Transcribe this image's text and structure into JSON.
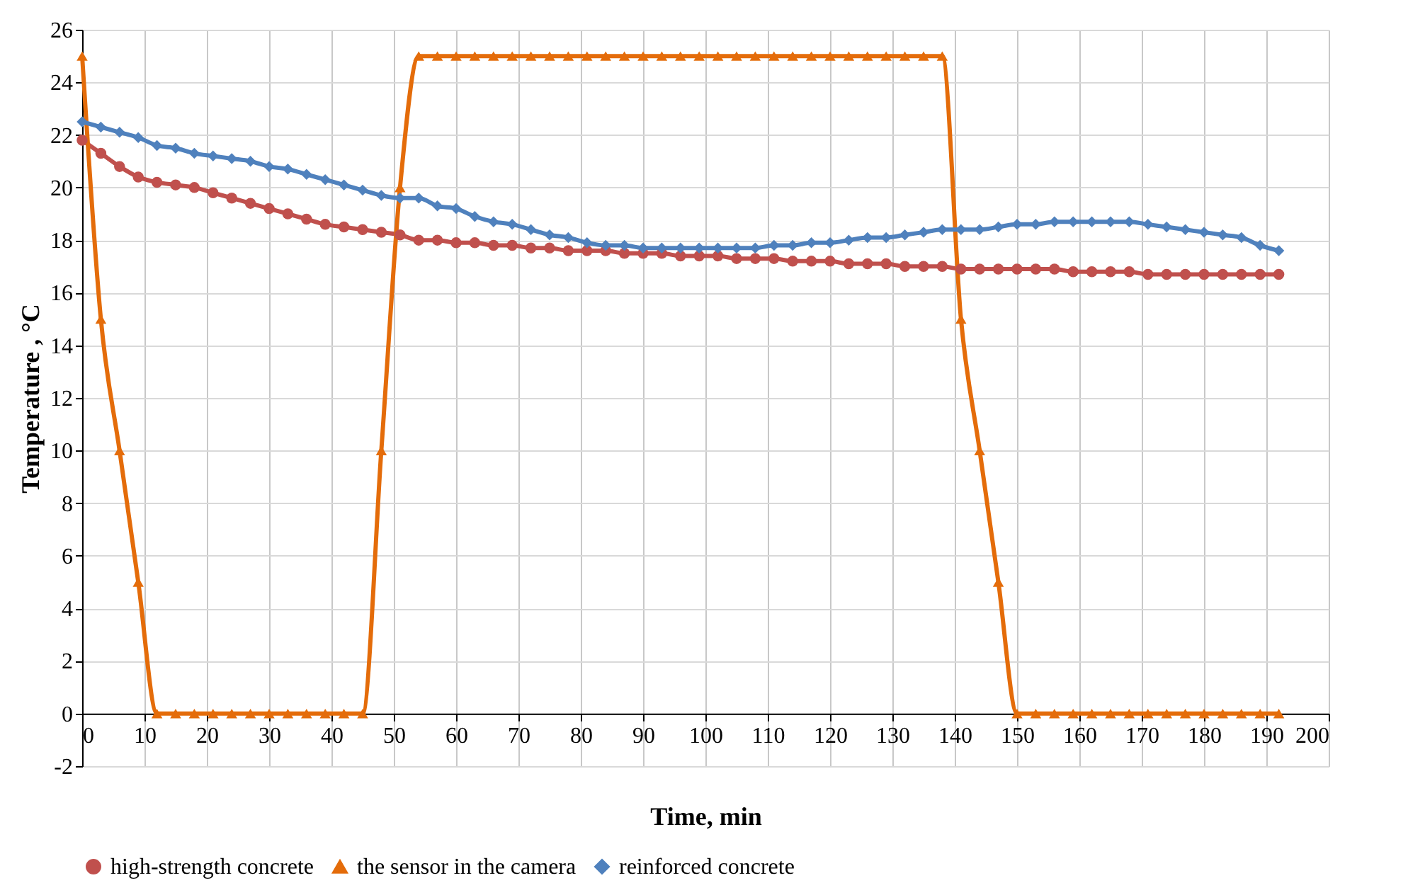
{
  "chart_data": {
    "type": "line",
    "xlabel": "Time, min",
    "ylabel": "Temperature , °C",
    "x": [
      0,
      3,
      6,
      9,
      12,
      15,
      18,
      21,
      24,
      27,
      30,
      33,
      36,
      39,
      42,
      45,
      48,
      51,
      54,
      57,
      60,
      63,
      66,
      69,
      72,
      75,
      78,
      81,
      84,
      87,
      90,
      93,
      96,
      99,
      102,
      105,
      108,
      111,
      114,
      117,
      120,
      123,
      126,
      129,
      132,
      135,
      138,
      141,
      144,
      147,
      150,
      153,
      156,
      159,
      162,
      165,
      168,
      171,
      174,
      177,
      180,
      183,
      186,
      189,
      192
    ],
    "series": [
      {
        "name": "high-strength concrete",
        "color": "#c0504d",
        "marker": "circle",
        "values": [
          21.8,
          21.3,
          20.8,
          20.4,
          20.2,
          20.1,
          20.0,
          19.8,
          19.6,
          19.4,
          19.2,
          19.0,
          18.8,
          18.6,
          18.5,
          18.4,
          18.3,
          18.2,
          18.0,
          18.0,
          17.9,
          17.9,
          17.8,
          17.8,
          17.7,
          17.7,
          17.6,
          17.6,
          17.6,
          17.5,
          17.5,
          17.5,
          17.4,
          17.4,
          17.4,
          17.3,
          17.3,
          17.3,
          17.2,
          17.2,
          17.2,
          17.1,
          17.1,
          17.1,
          17.0,
          17.0,
          17.0,
          16.9,
          16.9,
          16.9,
          16.9,
          16.9,
          16.9,
          16.8,
          16.8,
          16.8,
          16.8,
          16.7,
          16.7,
          16.7,
          16.7,
          16.7,
          16.7,
          16.7,
          16.7
        ]
      },
      {
        "name": "the sensor in the camera",
        "color": "#e46c0a",
        "marker": "triangle",
        "values": [
          25,
          15,
          10,
          5,
          0,
          0,
          0,
          0,
          0,
          0,
          0,
          0,
          0,
          0,
          0,
          0,
          10,
          20,
          25,
          25,
          25,
          25,
          25,
          25,
          25,
          25,
          25,
          25,
          25,
          25,
          25,
          25,
          25,
          25,
          25,
          25,
          25,
          25,
          25,
          25,
          25,
          25,
          25,
          25,
          25,
          25,
          25,
          15,
          10,
          5,
          0,
          0,
          0,
          0,
          0,
          0,
          0,
          0,
          0,
          0,
          0,
          0,
          0,
          0,
          0
        ]
      },
      {
        "name": "reinforced concrete",
        "color": "#4f81bd",
        "marker": "diamond",
        "values": [
          22.5,
          22.3,
          22.1,
          21.9,
          21.6,
          21.5,
          21.3,
          21.2,
          21.1,
          21.0,
          20.8,
          20.7,
          20.5,
          20.3,
          20.1,
          19.9,
          19.7,
          19.6,
          19.6,
          19.3,
          19.2,
          18.9,
          18.7,
          18.6,
          18.4,
          18.2,
          18.1,
          17.9,
          17.8,
          17.8,
          17.7,
          17.7,
          17.7,
          17.7,
          17.7,
          17.7,
          17.7,
          17.8,
          17.8,
          17.9,
          17.9,
          18.0,
          18.1,
          18.1,
          18.2,
          18.3,
          18.4,
          18.4,
          18.4,
          18.5,
          18.6,
          18.6,
          18.7,
          18.7,
          18.7,
          18.7,
          18.7,
          18.6,
          18.5,
          18.4,
          18.3,
          18.2,
          18.1,
          17.8,
          17.6
        ]
      }
    ],
    "xlim": [
      0,
      200
    ],
    "xticks": [
      0,
      10,
      20,
      30,
      40,
      50,
      60,
      70,
      80,
      90,
      100,
      110,
      120,
      130,
      140,
      150,
      160,
      170,
      180,
      190,
      200
    ],
    "ylim": [
      -2,
      26
    ],
    "yticks": [
      -2,
      0,
      2,
      4,
      6,
      8,
      10,
      12,
      14,
      16,
      18,
      20,
      22,
      24,
      26
    ],
    "grid": true,
    "legend": "bottom"
  }
}
